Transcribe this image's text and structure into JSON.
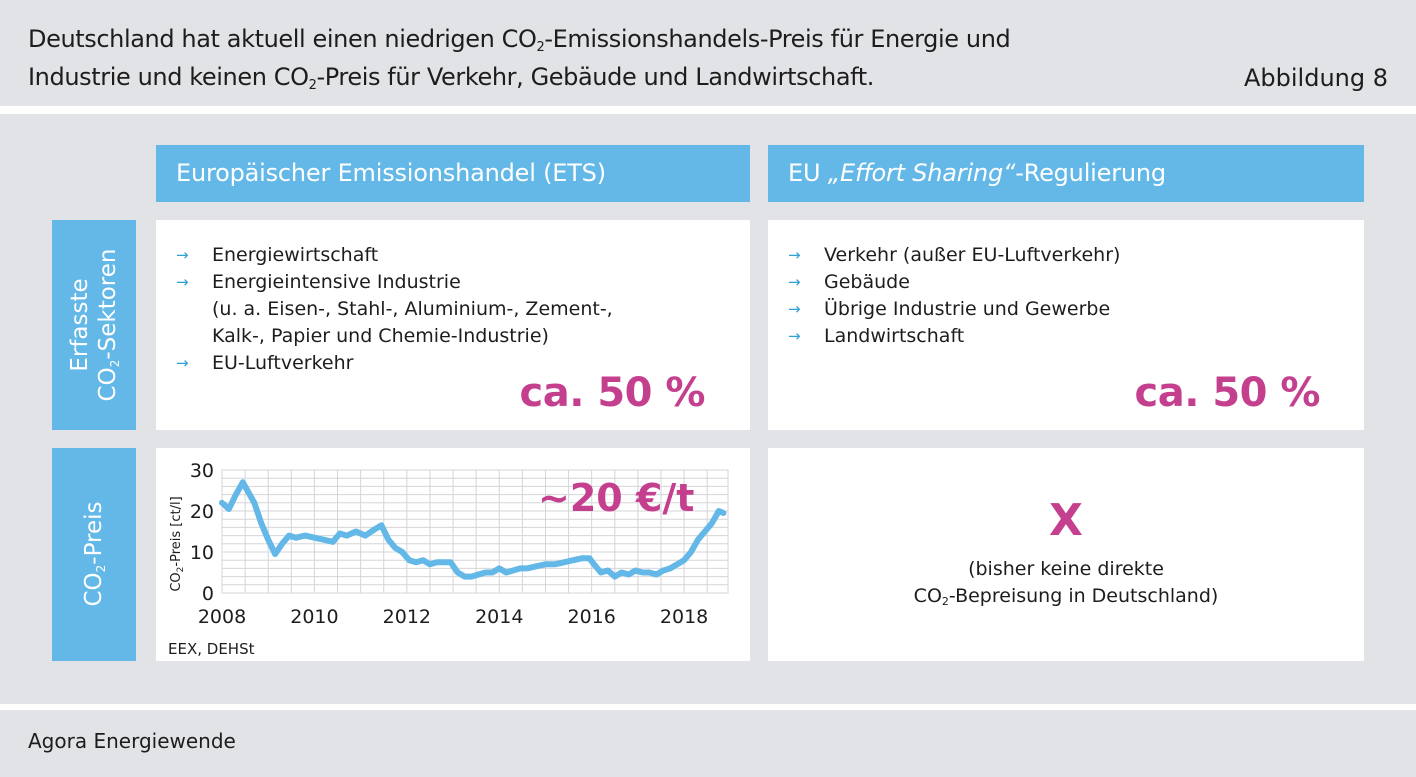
{
  "header": {
    "line1_a": "Deutschland hat aktuell einen niedrigen CO",
    "line1_sub": "2",
    "line1_b": "-Emissionshandels-Preis für Energie und",
    "line2_a": "Industrie und keinen CO",
    "line2_sub": "2",
    "line2_b": "-Preis für Verkehr, Gebäude und Landwirtschaft.",
    "figure_label": "Abbildung 8"
  },
  "columns": {
    "ets_title": "Europäischer Emissionshandel (ETS)",
    "esr_prefix": "EU ",
    "esr_italic": "„Effort Sharing“",
    "esr_suffix": "-Regulierung"
  },
  "rows": {
    "sectors_line1": "Erfasste",
    "sectors_line2_a": "CO",
    "sectors_line2_sub": "2",
    "sectors_line2_b": "-Sektoren",
    "price_a": "CO",
    "price_sub": "2",
    "price_b": "-Preis"
  },
  "ets_sectors": {
    "items": [
      {
        "text": "Energiewirtschaft"
      },
      {
        "text": "Energieintensive Industrie"
      },
      {
        "text": "(u. a. Eisen-, Stahl-, Aluminium-, Zement-,"
      },
      {
        "text": "Kalk-, Papier und Chemie-Industrie)"
      },
      {
        "text": "EU-Luftverkehr"
      }
    ],
    "arrow": "→",
    "share": "ca. 50 %"
  },
  "esr_sectors": {
    "items": [
      {
        "text": "Verkehr (außer EU-Luftverkehr)"
      },
      {
        "text": "Gebäude"
      },
      {
        "text": "Übrige Industrie und Gewerbe"
      },
      {
        "text": "Landwirtschaft"
      }
    ],
    "share": "ca. 50 %"
  },
  "esr_price": {
    "mark": "X",
    "note_line1": "(bisher keine direkte",
    "note_line2_a": "CO",
    "note_line2_sub": "2",
    "note_line2_b": "-Bepreisung in Deutschland)"
  },
  "chart_data": {
    "type": "line",
    "ylabel_a": "CO",
    "ylabel_sub": "2",
    "ylabel_b": "-Preis [ct/l]",
    "source": "EEX, DEHSt",
    "annotation": "~20 €/t",
    "xlim": [
      2008,
      2018.95
    ],
    "ylim": [
      0,
      30
    ],
    "xticks": [
      2008,
      2010,
      2012,
      2014,
      2016,
      2018
    ],
    "yticks": [
      0,
      10,
      20,
      30
    ],
    "grid": true,
    "color": "#63b8e8",
    "series": [
      {
        "x": [
          2008.0,
          2008.15,
          2008.3,
          2008.45,
          2008.55,
          2008.7,
          2008.85,
          2009.0,
          2009.15,
          2009.3,
          2009.45,
          2009.6,
          2009.8,
          2010.0,
          2010.2,
          2010.4,
          2010.55,
          2010.7,
          2010.9,
          2011.1,
          2011.3,
          2011.45,
          2011.6,
          2011.75,
          2011.9,
          2012.05,
          2012.2,
          2012.35,
          2012.5,
          2012.65,
          2012.8,
          2012.95,
          2013.1,
          2013.25,
          2013.4,
          2013.55,
          2013.7,
          2013.85,
          2014.0,
          2014.15,
          2014.3,
          2014.45,
          2014.6,
          2014.8,
          2015.0,
          2015.2,
          2015.4,
          2015.6,
          2015.8,
          2015.95,
          2016.05,
          2016.2,
          2016.35,
          2016.5,
          2016.65,
          2016.8,
          2016.95,
          2017.1,
          2017.25,
          2017.4,
          2017.55,
          2017.7,
          2017.85,
          2018.0,
          2018.15,
          2018.3,
          2018.45,
          2018.6,
          2018.75,
          2018.85
        ],
        "y": [
          22,
          20.5,
          24,
          27,
          25,
          22,
          17,
          13,
          9.5,
          12,
          14,
          13.5,
          14,
          13.5,
          13,
          12.5,
          14.5,
          14,
          15,
          14,
          15.5,
          16.5,
          13,
          11,
          10,
          8,
          7.5,
          8,
          7,
          7.5,
          7.5,
          7.5,
          5,
          4,
          4,
          4.5,
          5,
          5,
          6,
          5,
          5.5,
          6,
          6,
          6.5,
          7,
          7,
          7.5,
          8,
          8.5,
          8.5,
          7,
          5,
          5.5,
          4,
          5,
          4.5,
          5.5,
          5,
          5,
          4.5,
          5.5,
          6,
          7,
          8,
          10,
          13,
          15,
          17,
          20,
          19.5
        ]
      }
    ]
  }
}
